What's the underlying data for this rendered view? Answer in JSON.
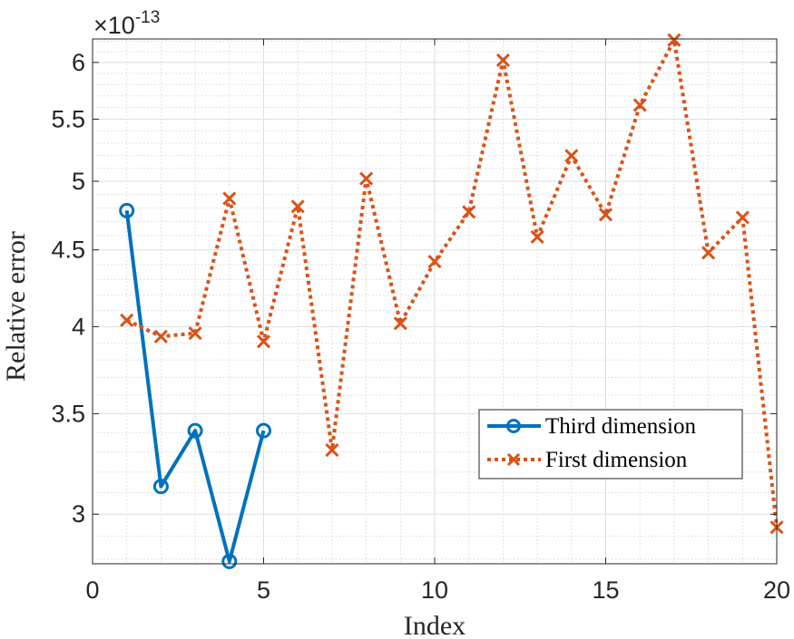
{
  "chart_data": {
    "type": "line",
    "title": "",
    "xlabel": "Index",
    "ylabel": "Relative error",
    "y_scale": "log",
    "y_multiplier_base": "×10",
    "y_multiplier_exponent": "-13",
    "xlim": [
      0,
      20
    ],
    "ylim": [
      2.78,
      6.22
    ],
    "grid": true,
    "minor_grid": true,
    "x_ticks": [
      0,
      5,
      10,
      15,
      20
    ],
    "x_tick_labels": [
      "0",
      "5",
      "10",
      "15",
      "20"
    ],
    "y_ticks": [
      3,
      3.5,
      4,
      4.5,
      5,
      5.5,
      6
    ],
    "y_tick_labels": [
      "3",
      "3.5",
      "4",
      "4.5",
      "5",
      "5.5",
      "6"
    ],
    "legend_position": "center-right",
    "series": [
      {
        "name": "Third dimension",
        "color": "#0072BD",
        "line_style": "solid",
        "marker": "circle",
        "x": [
          1,
          2,
          3,
          4,
          5
        ],
        "y": [
          4.78,
          3.13,
          3.41,
          2.79,
          3.41
        ]
      },
      {
        "name": "First dimension",
        "color": "#D95319",
        "line_style": "dotted",
        "marker": "x",
        "x": [
          1,
          2,
          3,
          4,
          5,
          6,
          7,
          8,
          9,
          10,
          11,
          12,
          13,
          14,
          15,
          16,
          17,
          18,
          19,
          20
        ],
        "y": [
          4.04,
          3.94,
          3.96,
          4.87,
          3.91,
          4.81,
          3.31,
          5.02,
          4.02,
          4.42,
          4.77,
          6.02,
          4.59,
          5.2,
          4.75,
          5.62,
          6.21,
          4.48,
          4.73,
          2.94
        ]
      }
    ]
  }
}
